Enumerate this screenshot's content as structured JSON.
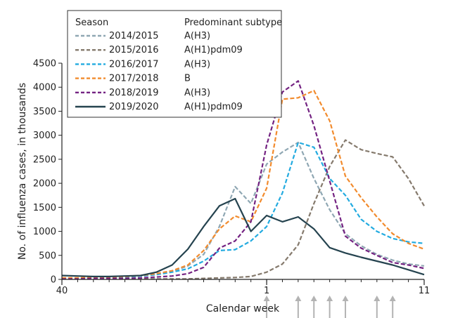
{
  "chart_data": {
    "type": "line",
    "xlabel": "Calendar week",
    "ylabel": "No. of influenza cases, in thousands",
    "x_tick_labels": [
      "40",
      "1",
      "11"
    ],
    "ylim": [
      0,
      4500
    ],
    "y_ticks": [
      0,
      500,
      1000,
      1500,
      2000,
      2500,
      3000,
      3500,
      4000,
      4500
    ],
    "x_categories": [
      "40",
      "41",
      "42",
      "43",
      "44",
      "45",
      "46",
      "47",
      "48",
      "49",
      "50",
      "51",
      "52",
      "1",
      "2",
      "3",
      "4",
      "5",
      "6",
      "7",
      "8",
      "9",
      "10",
      "11"
    ],
    "grid": false,
    "legend": {
      "position": "top-left",
      "headers": {
        "season": "Season",
        "subtype": "Predominant subtype"
      }
    },
    "arrow_weeks": [
      "1",
      "3",
      "4",
      "5",
      "6",
      "8",
      "9"
    ],
    "series": [
      {
        "name": "2014/2015",
        "subtype": "A(H3)",
        "color": "#8fa7b3",
        "dash": "dashed",
        "values": [
          20,
          20,
          30,
          40,
          50,
          70,
          100,
          160,
          280,
          520,
          1100,
          1930,
          1580,
          2400,
          2650,
          2850,
          2100,
          1450,
          950,
          700,
          520,
          400,
          320,
          280
        ]
      },
      {
        "name": "2015/2016",
        "subtype": "A(H1)pdm09",
        "color": "#857a6d",
        "dash": "dashed",
        "values": [
          10,
          10,
          10,
          10,
          10,
          10,
          10,
          10,
          10,
          20,
          30,
          40,
          60,
          150,
          320,
          720,
          1580,
          2350,
          2900,
          2700,
          2620,
          2550,
          2100,
          1530
        ]
      },
      {
        "name": "2016/2017",
        "subtype": "A(H3)",
        "color": "#23abe0",
        "dash": "dashed",
        "values": [
          20,
          20,
          30,
          40,
          50,
          70,
          100,
          150,
          220,
          380,
          600,
          620,
          800,
          1100,
          1800,
          2850,
          2750,
          2100,
          1750,
          1250,
          1000,
          850,
          780,
          750
        ]
      },
      {
        "name": "2017/2018",
        "subtype": "B",
        "color": "#f28b2d",
        "dash": "dashed",
        "values": [
          30,
          30,
          40,
          50,
          60,
          80,
          120,
          180,
          300,
          600,
          1050,
          1320,
          1200,
          1900,
          3750,
          3780,
          3930,
          3300,
          2150,
          1700,
          1300,
          950,
          750,
          630
        ]
      },
      {
        "name": "2018/2019",
        "subtype": "A(H3)",
        "color": "#742382",
        "dash": "dashed",
        "values": [
          10,
          10,
          20,
          20,
          20,
          30,
          50,
          70,
          120,
          250,
          650,
          800,
          1200,
          2800,
          3900,
          4130,
          3200,
          2050,
          900,
          650,
          500,
          350,
          300,
          230
        ]
      },
      {
        "name": "2019/2020",
        "subtype": "A(H1)pdm09",
        "color": "#25434f",
        "dash": "solid",
        "values": [
          80,
          70,
          60,
          60,
          70,
          80,
          150,
          300,
          630,
          1100,
          1530,
          1680,
          1000,
          1330,
          1200,
          1300,
          1050,
          660,
          550,
          460,
          380,
          300,
          200,
          100
        ]
      }
    ]
  }
}
